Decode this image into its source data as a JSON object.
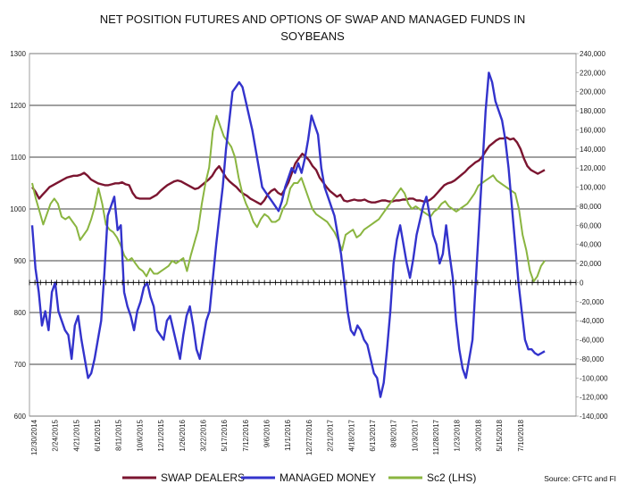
{
  "chart_data": {
    "type": "line",
    "title_lines": [
      "NET POSITION FUTURES AND OPTIONS OF SWAP AND MANAGED FUNDS IN",
      "SOYBEANS"
    ],
    "source": "Source: CFTC and FI",
    "left_axis": {
      "ylim": [
        600,
        1300
      ],
      "ticks": [
        "600",
        "700",
        "800",
        "900",
        "1000",
        "1100",
        "1200",
        "1300"
      ]
    },
    "right_axis": {
      "ylim": [
        -140000,
        240000
      ],
      "ticks": [
        "-140,000",
        "-120,000",
        "-100,000",
        "-80,000",
        "-60,000",
        "-40,000",
        "-20,000",
        "0",
        "20,000",
        "40,000",
        "60,000",
        "80,000",
        "100,000",
        "120,000",
        "140,000",
        "160,000",
        "180,000",
        "200,000",
        "220,000",
        "240,000"
      ]
    },
    "x_tick_labels": [
      "12/30/2014",
      "2/24/2015",
      "4/21/2015",
      "6/16/2015",
      "8/11/2015",
      "10/6/2015",
      "12/1/2015",
      "1/26/2016",
      "3/22/2016",
      "5/17/2016",
      "7/12/2016",
      "9/6/2016",
      "11/1/2016",
      "12/27/2016",
      "2/21/2017",
      "4/18/2017",
      "6/13/2017",
      "8/8/2017",
      "10/3/2017",
      "11/28/2017",
      "1/23/2018",
      "3/20/2018",
      "5/15/2018",
      "7/10/2018"
    ],
    "grid": true,
    "legend_position": "bottom",
    "series": [
      {
        "name": "SWAP DEALERS",
        "axis": "right",
        "color": "#7b1530",
        "values": [
          100000,
          95000,
          88000,
          92000,
          96000,
          100000,
          102000,
          104000,
          106000,
          108000,
          110000,
          111000,
          112000,
          112000,
          113000,
          115000,
          112000,
          108000,
          106000,
          104000,
          103000,
          102000,
          102000,
          103000,
          104000,
          104000,
          105000,
          103000,
          102000,
          94000,
          89000,
          88000,
          88000,
          88000,
          88000,
          90000,
          92000,
          96000,
          99000,
          102000,
          104000,
          106000,
          107000,
          106000,
          104000,
          102000,
          100000,
          98000,
          99000,
          102000,
          105000,
          108000,
          112000,
          118000,
          122000,
          116000,
          110000,
          106000,
          103000,
          100000,
          96000,
          93000,
          91000,
          88000,
          86000,
          84000,
          82000,
          86000,
          92000,
          96000,
          98000,
          94000,
          92000,
          98000,
          105000,
          115000,
          125000,
          130000,
          135000,
          132000,
          128000,
          122000,
          118000,
          110000,
          105000,
          100000,
          96000,
          93000,
          90000,
          92000,
          86000,
          85000,
          86000,
          87000,
          86000,
          86000,
          87000,
          85000,
          84000,
          84000,
          85000,
          86000,
          86000,
          85000,
          85000,
          86000,
          86000,
          87000,
          87000,
          88000,
          88000,
          86000,
          86000,
          85000,
          85000,
          87000,
          90000,
          94000,
          98000,
          102000,
          104000,
          105000,
          107000,
          110000,
          113000,
          116000,
          120000,
          123000,
          126000,
          128000,
          132000,
          138000,
          143000,
          146000,
          149000,
          151000,
          151000,
          152000,
          150000,
          151000,
          147000,
          140000,
          130000,
          122000,
          118000,
          116000,
          114000,
          116000,
          118000
        ]
      },
      {
        "name": "MANAGED MONEY",
        "axis": "right",
        "color": "#3333cc",
        "values": [
          60000,
          15000,
          -10000,
          -45000,
          -30000,
          -50000,
          -10000,
          0,
          -30000,
          -40000,
          -50000,
          -55000,
          -80000,
          -45000,
          -35000,
          -60000,
          -80000,
          -100000,
          -95000,
          -80000,
          -60000,
          -40000,
          10000,
          70000,
          80000,
          90000,
          55000,
          60000,
          -10000,
          -25000,
          -35000,
          -50000,
          -30000,
          -20000,
          -5000,
          0,
          -15000,
          -25000,
          -50000,
          -55000,
          -60000,
          -40000,
          -35000,
          -50000,
          -65000,
          -80000,
          -55000,
          -35000,
          -25000,
          -45000,
          -70000,
          -80000,
          -60000,
          -40000,
          -30000,
          5000,
          40000,
          70000,
          100000,
          140000,
          170000,
          200000,
          205000,
          210000,
          205000,
          190000,
          175000,
          160000,
          140000,
          120000,
          100000,
          95000,
          90000,
          85000,
          80000,
          75000,
          85000,
          100000,
          110000,
          120000,
          115000,
          125000,
          115000,
          130000,
          150000,
          175000,
          165000,
          155000,
          120000,
          100000,
          90000,
          80000,
          70000,
          50000,
          30000,
          0,
          -30000,
          -50000,
          -55000,
          -45000,
          -50000,
          -60000,
          -65000,
          -80000,
          -95000,
          -100000,
          -120000,
          -105000,
          -70000,
          -30000,
          20000,
          45000,
          60000,
          40000,
          20000,
          5000,
          25000,
          50000,
          65000,
          80000,
          90000,
          70000,
          50000,
          40000,
          20000,
          30000,
          60000,
          30000,
          5000,
          -40000,
          -70000,
          -90000,
          -100000,
          -80000,
          -60000,
          0,
          60000,
          120000,
          180000,
          220000,
          210000,
          190000,
          180000,
          170000,
          150000,
          120000,
          80000,
          40000,
          0,
          -30000,
          -60000,
          -70000,
          -70000,
          -74000,
          -76000,
          -74000,
          -72000
        ]
      },
      {
        "name": "Sc2 (LHS)",
        "axis": "left",
        "color": "#8ab540",
        "values": [
          1050,
          1020,
          995,
          970,
          990,
          1010,
          1020,
          1010,
          985,
          980,
          985,
          975,
          965,
          940,
          950,
          960,
          980,
          1005,
          1040,
          1010,
          970,
          960,
          955,
          945,
          930,
          910,
          900,
          905,
          895,
          885,
          880,
          870,
          885,
          875,
          875,
          880,
          885,
          890,
          900,
          895,
          900,
          905,
          880,
          910,
          935,
          960,
          1010,
          1050,
          1080,
          1150,
          1180,
          1160,
          1140,
          1130,
          1120,
          1100,
          1060,
          1030,
          1010,
          995,
          975,
          965,
          980,
          990,
          985,
          975,
          975,
          980,
          1000,
          1010,
          1040,
          1050,
          1050,
          1060,
          1040,
          1020,
          1000,
          990,
          985,
          980,
          975,
          965,
          955,
          940,
          920,
          950,
          955,
          960,
          945,
          950,
          960,
          965,
          970,
          975,
          980,
          990,
          1000,
          1010,
          1020,
          1030,
          1040,
          1030,
          1010,
          1000,
          1005,
          1000,
          995,
          990,
          985,
          995,
          1000,
          1010,
          1015,
          1005,
          1000,
          995,
          1000,
          1005,
          1010,
          1020,
          1030,
          1045,
          1050,
          1055,
          1060,
          1065,
          1055,
          1050,
          1045,
          1040,
          1035,
          1030,
          1000,
          950,
          920,
          880,
          860,
          870,
          890,
          900
        ]
      }
    ]
  }
}
